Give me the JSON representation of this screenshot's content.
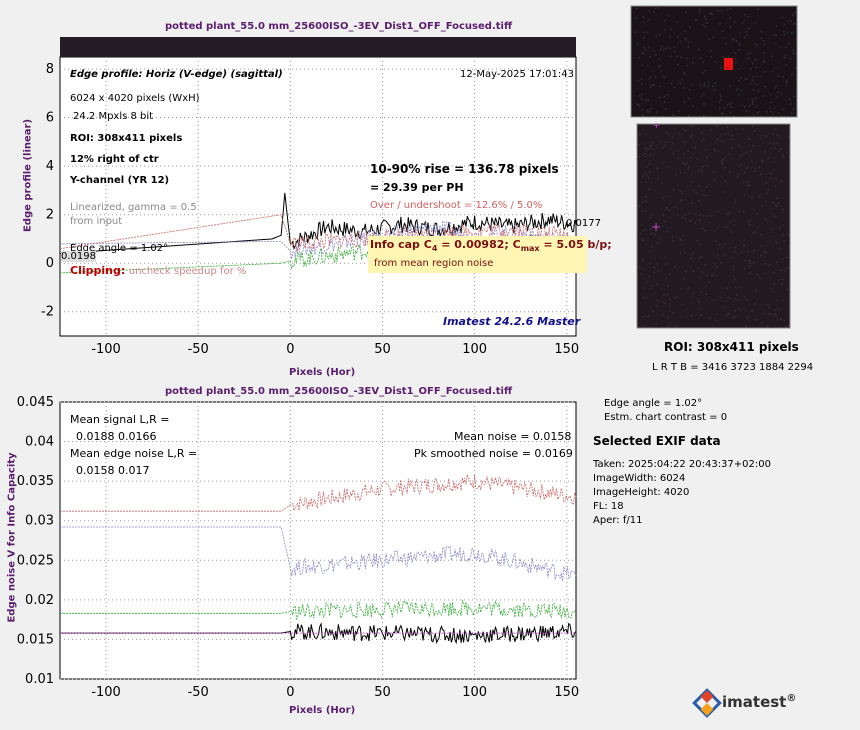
{
  "colors": {
    "title": "#5a1e6e",
    "accent": "#c00000",
    "ink_blue": "#10108c",
    "infobox": "#fff6b4"
  },
  "top": {
    "title": "potted plant_55.0 mm_25600ISO_-3EV_Dist1_OFF_Focused.tiff",
    "ylabel": "Edge profile (linear)",
    "xlabel": "Pixels (Hor)",
    "info": {
      "edge_profile": "Edge profile: Horiz (V-edge) (sagittal)",
      "date": "12-May-2025 17:01:43",
      "dims": "6024 x 4020 pixels (WxH)",
      "mpxls": "24.2 Mpxls   8 bit",
      "roi": "ROI:  308x411 pixels",
      "pos": "12% right of ctr",
      "channel": "Y-channel  (YR 12)",
      "lin1": "Linearized, gamma = 0.5",
      "lin2": "from input",
      "edge_angle": "Edge angle = 1.02°",
      "clip_label": "Clipping:",
      "clip_text": "uncheck speedup for %",
      "rise1": "10-90% rise = 136.78 pixels",
      "rise2": "=  29.39 per PH",
      "overshoot": "Over / undershoot = 12.6% / 5.0%",
      "val_left": "0.0198",
      "val_right": "0.0177",
      "infocap_a": "Info cap C",
      "infocap_sub4": "4",
      "infocap_b": " = 0.00982;  C",
      "infocap_submax": "max",
      "infocap_c": " = 5.05 b/p;",
      "infocap_note": "from mean region noise",
      "version": "Imatest 24.2.6 Master"
    }
  },
  "bottom": {
    "title": "potted plant_55.0 mm_25600ISO_-3EV_Dist1_OFF_Focused.tiff",
    "ylabel": "Edge noise V for Info Capacity",
    "xlabel": "Pixels (Hor)",
    "info": {
      "mean_signal_label": "Mean signal L,R =",
      "mean_signal_vals": "0.0188  0.0166",
      "mean_edge_noise_label": "Mean edge noise L,R =",
      "mean_edge_noise_vals": "0.0158  0.017",
      "mean_noise": "Mean noise = 0.0158",
      "pk_noise": "Pk smoothed noise = 0.0169"
    }
  },
  "right": {
    "roi_title": "ROI:  308x411 pixels",
    "roi_coords": "L R  T B = 3416 3723  1884 2294",
    "edge_angle": "Edge angle = 1.02°",
    "chart_contrast": "Estm. chart contrast = 0",
    "exif_title": "Selected EXIF data",
    "exif": [
      "Taken: 2025:04:22 20:43:37+02:00",
      "ImageWidth:  6024",
      "ImageHeight:  4020",
      "FL:   18",
      "Aper:  f/11"
    ],
    "logo_text": "imatest",
    "logo_mark": "®"
  },
  "chart_data": [
    {
      "type": "line",
      "title": "potted plant_55.0 mm_25600ISO_-3EV_Dist1_OFF_Focused.tiff",
      "xlabel": "Pixels (Hor)",
      "ylabel": "Edge profile (linear)",
      "xlim": [
        -125,
        155
      ],
      "ylim": [
        -3,
        8.5
      ],
      "xticks": [
        -100,
        -50,
        0,
        50,
        100,
        150
      ],
      "yticks": [
        -2,
        0,
        2,
        4,
        6,
        8
      ],
      "grid": true,
      "series": [
        {
          "color": "#000000",
          "x": [
            -125,
            -10,
            -5,
            -3,
            0,
            20,
            40,
            60,
            80,
            100,
            120,
            140,
            155
          ],
          "y": [
            0.4,
            1.0,
            1.15,
            2.9,
            0.8,
            1.5,
            1.3,
            1.6,
            1.4,
            1.7,
            1.5,
            1.8,
            1.6
          ]
        },
        {
          "color": "#8888cc",
          "x": [
            -125,
            -5,
            0,
            40,
            80,
            100,
            120,
            155
          ],
          "y": [
            0.8,
            0.9,
            0.5,
            1.0,
            1.5,
            1.0,
            1.3,
            0.8
          ]
        },
        {
          "color": "#cc6666",
          "x": [
            -125,
            -5,
            0,
            40,
            80,
            120,
            155
          ],
          "y": [
            0.6,
            2.0,
            0.8,
            1.0,
            1.2,
            1.4,
            1.1
          ]
        },
        {
          "color": "#33aa33",
          "x": [
            -125,
            -5,
            0,
            40,
            80,
            120,
            155
          ],
          "y": [
            -0.4,
            0.0,
            0.1,
            0.5,
            0.6,
            0.8,
            0.6
          ]
        }
      ]
    },
    {
      "type": "line",
      "title": "potted plant_55.0 mm_25600ISO_-3EV_Dist1_OFF_Focused.tiff",
      "xlabel": "Pixels (Hor)",
      "ylabel": "Edge noise V for Info Capacity",
      "xlim": [
        -125,
        155
      ],
      "ylim": [
        0.01,
        0.045
      ],
      "xticks": [
        -100,
        -50,
        0,
        50,
        100,
        150
      ],
      "yticks": [
        0.01,
        0.015,
        0.02,
        0.025,
        0.03,
        0.035,
        0.04,
        0.045
      ],
      "grid": true,
      "series": [
        {
          "color": "#cc6666",
          "x": [
            -125,
            -5,
            0,
            50,
            100,
            155
          ],
          "y": [
            0.0312,
            0.0312,
            0.032,
            0.034,
            0.035,
            0.033
          ]
        },
        {
          "color": "#8888cc",
          "x": [
            -125,
            -5,
            0,
            50,
            100,
            155
          ],
          "y": [
            0.0292,
            0.0292,
            0.024,
            0.025,
            0.026,
            0.023
          ]
        },
        {
          "color": "#33aa33",
          "x": [
            -125,
            -5,
            0,
            50,
            100,
            155
          ],
          "y": [
            0.0183,
            0.0183,
            0.0185,
            0.0188,
            0.019,
            0.0185
          ]
        },
        {
          "color": "#000000",
          "x": [
            -125,
            -5,
            0,
            50,
            100,
            155
          ],
          "y": [
            0.0158,
            0.0158,
            0.016,
            0.0158,
            0.0155,
            0.016
          ]
        },
        {
          "color": "#cc44cc",
          "x": [
            -125,
            155
          ],
          "y": [
            0.0158,
            0.0158
          ]
        }
      ]
    }
  ]
}
